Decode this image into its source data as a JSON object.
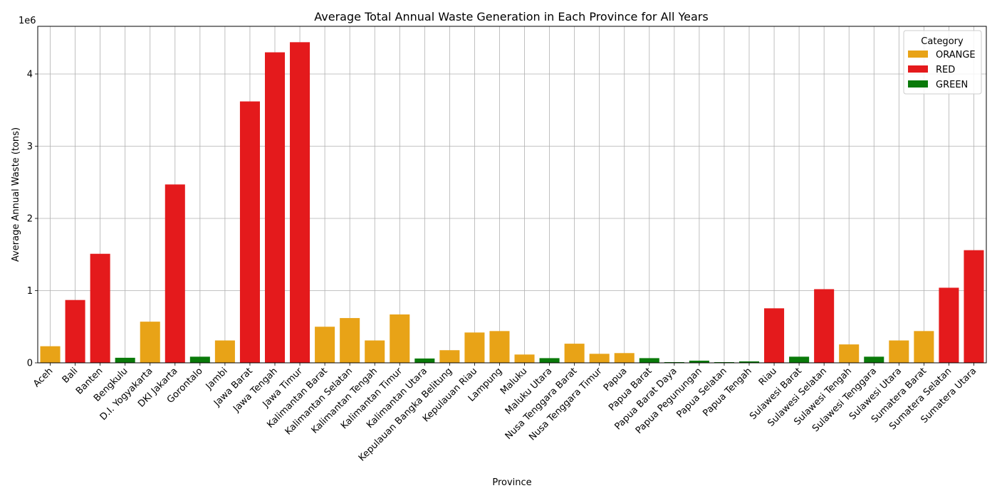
{
  "chart_data": {
    "type": "bar",
    "title": "Average Total Annual Waste Generation in Each Province for All Years",
    "xlabel": "Province",
    "ylabel": "Average Annual Waste (tons)",
    "y_scale_label": "1e6",
    "ylim": [
      0,
      4660000
    ],
    "yticks": [
      0,
      1,
      2,
      3,
      4
    ],
    "grid": true,
    "legend_title": "Category",
    "legend_position": "top-right",
    "legend": [
      {
        "name": "ORANGE",
        "color": "#e8a317"
      },
      {
        "name": "RED",
        "color": "#e41a1c"
      },
      {
        "name": "GREEN",
        "color": "#0a7a0a"
      }
    ],
    "categories": [
      "Aceh",
      "Bali",
      "Banten",
      "Bengkulu",
      "D.I. Yogyakarta",
      "DKI Jakarta",
      "Gorontalo",
      "Jambi",
      "Jawa Barat",
      "Jawa Tengah",
      "Jawa Timur",
      "Kalimantan Barat",
      "Kalimantan Selatan",
      "Kalimantan Tengah",
      "Kalimantan Timur",
      "Kalimantan Utara",
      "Kepulauan Bangka Belitung",
      "Kepulauan Riau",
      "Lampung",
      "Maluku",
      "Maluku Utara",
      "Nusa Tenggara Barat",
      "Nusa Tenggara Timur",
      "Papua",
      "Papua Barat",
      "Papua Barat Daya",
      "Papua Pegunungan",
      "Papua Selatan",
      "Papua Tengah",
      "Riau",
      "Sulawesi Barat",
      "Sulawesi Selatan",
      "Sulawesi Tengah",
      "Sulawesi Tenggara",
      "Sulawesi Utara",
      "Sumatera Barat",
      "Sumatera Selatan",
      "Sumatera Utara"
    ],
    "values": [
      230000,
      870000,
      1510000,
      70000,
      570000,
      2470000,
      85000,
      310000,
      3620000,
      4300000,
      4440000,
      500000,
      620000,
      310000,
      670000,
      60000,
      175000,
      420000,
      440000,
      115000,
      65000,
      265000,
      125000,
      135000,
      65000,
      10000,
      30000,
      10000,
      20000,
      755000,
      85000,
      1020000,
      255000,
      85000,
      310000,
      440000,
      1040000,
      1560000
    ],
    "category_of_bar": [
      "ORANGE",
      "RED",
      "RED",
      "GREEN",
      "ORANGE",
      "RED",
      "GREEN",
      "ORANGE",
      "RED",
      "RED",
      "RED",
      "ORANGE",
      "ORANGE",
      "ORANGE",
      "ORANGE",
      "GREEN",
      "ORANGE",
      "ORANGE",
      "ORANGE",
      "ORANGE",
      "GREEN",
      "ORANGE",
      "ORANGE",
      "ORANGE",
      "GREEN",
      "GREEN",
      "GREEN",
      "GREEN",
      "GREEN",
      "RED",
      "GREEN",
      "RED",
      "ORANGE",
      "GREEN",
      "ORANGE",
      "ORANGE",
      "RED",
      "RED"
    ]
  }
}
